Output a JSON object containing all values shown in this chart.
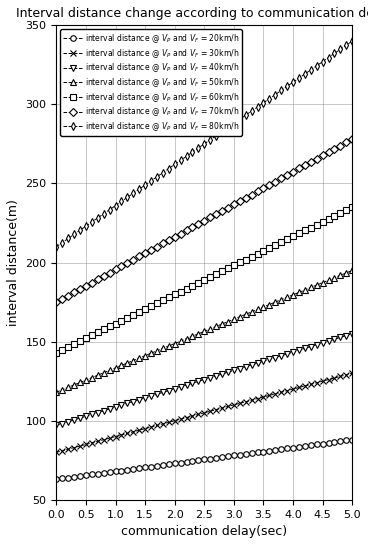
{
  "title": "Interval distance change according to communication delay",
  "xlabel": "communication delay(sec)",
  "ylabel": "interval distance(m)",
  "xlim": [
    0,
    5
  ],
  "ylim": [
    50,
    350
  ],
  "yticks": [
    50,
    100,
    150,
    200,
    250,
    300,
    350
  ],
  "xticks": [
    0,
    0.5,
    1,
    1.5,
    2,
    2.5,
    3,
    3.5,
    4,
    4.5,
    5
  ],
  "legend_labels": [
    "interval distance @ $V_P$ and $V_F$ = 20km/h",
    "interval distance @ $V_P$ and $V_F$ = 30km/h",
    "interval distance @ $V_P$ and $V_F$ = 40km/h",
    "interval distance @ $V_P$ and $V_F$ = 50km/h",
    "interval distance @ $V_P$ and $V_F$ = 60km/h",
    "interval distance @ $V_P$ and $V_F$ = 70km/h",
    "interval distance @ $V_P$ and $V_F$ = 80km/h"
  ],
  "series_params": [
    {
      "y0": 63,
      "y5": 88,
      "marker": "o"
    },
    {
      "y0": 80,
      "y5": 130,
      "marker": "x"
    },
    {
      "y0": 97,
      "y5": 155,
      "marker": "v"
    },
    {
      "y0": 118,
      "y5": 195,
      "marker": "^"
    },
    {
      "y0": 143,
      "y5": 235,
      "marker": "s"
    },
    {
      "y0": 175,
      "y5": 278,
      "marker": "D"
    },
    {
      "y0": 210,
      "y5": 340,
      "marker": "d"
    }
  ],
  "color": "black",
  "markersize": 4,
  "linewidth": 0.7,
  "n_points": 101
}
